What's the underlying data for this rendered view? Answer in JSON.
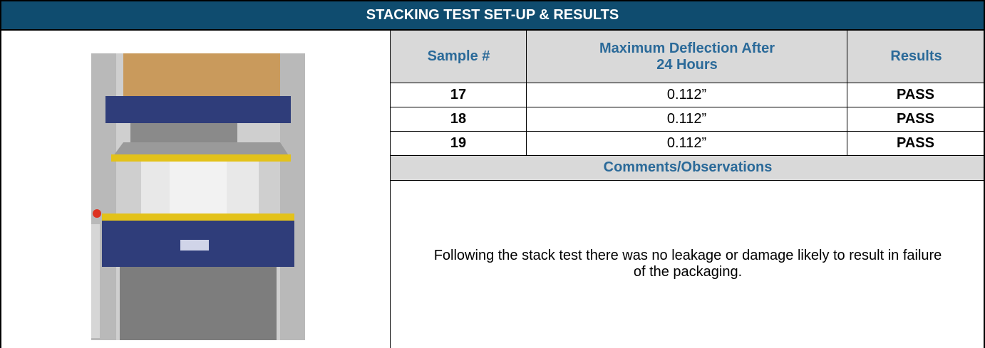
{
  "header": {
    "title": "STACKING TEST SET-UP & RESULTS"
  },
  "table": {
    "columns": [
      "Sample #",
      "Maximum Deflection After 24 Hours",
      "Results"
    ],
    "rows": [
      [
        17,
        "0.112”",
        "PASS"
      ],
      [
        18,
        "0.112”",
        "PASS"
      ],
      [
        19,
        "0.112”",
        "PASS"
      ]
    ]
  },
  "comments": {
    "title": "Comments/Observations",
    "text": "Following the stack test there was no leakage or damage likely to result in failure of the packaging."
  }
}
